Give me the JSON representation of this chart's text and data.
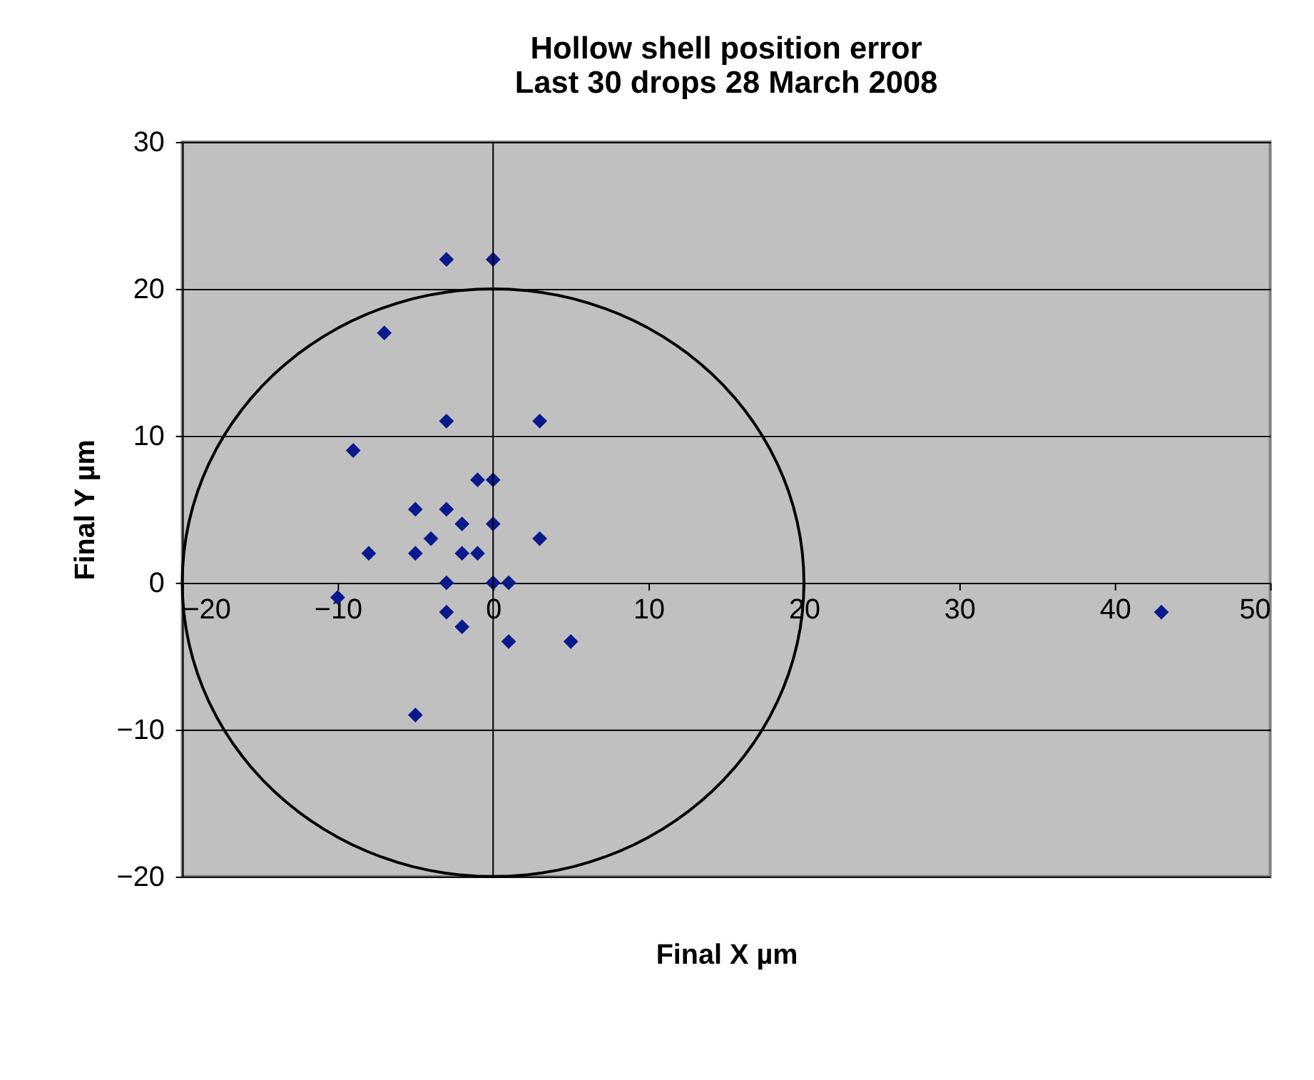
{
  "chart_data": {
    "type": "scatter",
    "title": [
      "Hollow shell position error",
      "Last 30 drops 28 March 2008"
    ],
    "xlabel": "Final X µm",
    "ylabel": "Final Y µm",
    "xlim": [
      -20,
      50
    ],
    "ylim": [
      -20,
      30
    ],
    "xticks": [
      -20,
      -10,
      0,
      10,
      20,
      30,
      40,
      50
    ],
    "yticks": [
      -20,
      -10,
      0,
      10,
      20,
      30
    ],
    "grid": "y",
    "legend": false,
    "marker": "diamond",
    "ref_lines": [
      {
        "axis": "x",
        "value": 0,
        "color": "#000000"
      }
    ],
    "series": [
      {
        "color": "#0a1a8c",
        "x": [
          -3,
          0,
          -7,
          -3,
          3,
          -9,
          -1,
          0,
          -5,
          -3,
          -2,
          0,
          -4,
          3,
          -8,
          -5,
          -2,
          -1,
          -3,
          0,
          1,
          -10,
          -3,
          -2,
          1,
          5,
          -5,
          43
        ],
        "values": [
          22,
          22,
          17,
          11,
          11,
          9,
          7,
          7,
          5,
          5,
          4,
          4,
          3,
          3,
          2,
          2,
          2,
          2,
          0,
          0,
          0,
          -1,
          -2,
          -3,
          -4,
          -4,
          -9,
          -2
        ]
      }
    ]
  }
}
